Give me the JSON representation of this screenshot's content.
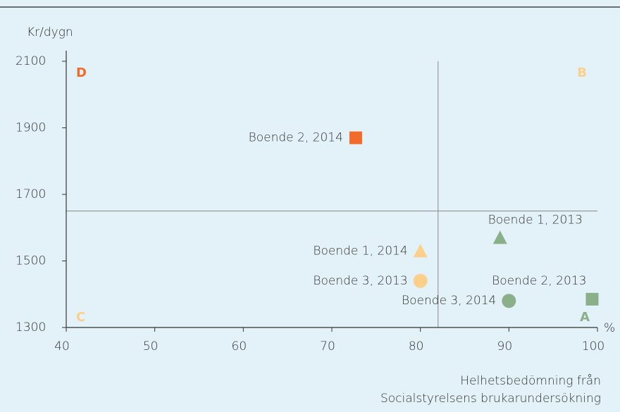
{
  "chart_data": {
    "type": "scatter",
    "ylabel": "Kr/dygn",
    "xunit": "%",
    "xlabel": [
      "Helhetsbedömning från",
      "Socialstyrelsens brukarundersökning"
    ],
    "xlim": [
      40,
      100
    ],
    "xticks": [
      40,
      50,
      60,
      70,
      80,
      90,
      100
    ],
    "ylim": [
      1300,
      2100
    ],
    "yticks": [
      1300,
      1500,
      1700,
      1900,
      2100
    ],
    "vline": 82,
    "hline": 1650,
    "quadrants": [
      {
        "text": "D",
        "color": "#f26b2a",
        "corner": "top-left"
      },
      {
        "text": "B",
        "color": "#fcd08a",
        "corner": "top-right"
      },
      {
        "text": "C",
        "color": "#fcd08a",
        "corner": "bottom-left"
      },
      {
        "text": "A",
        "color": "#8ab089",
        "corner": "bottom-right"
      }
    ],
    "points": [
      {
        "label": "Boende 2, 2014",
        "x": 72.7,
        "y": 1870,
        "marker": "square",
        "color": "#f26b2a"
      },
      {
        "label": "Boende 1, 2014",
        "x": 80,
        "y": 1530,
        "marker": "triangle",
        "color": "#fcd08a"
      },
      {
        "label": "Boende 3, 2013",
        "x": 80,
        "y": 1440,
        "marker": "circle",
        "color": "#fcd08a"
      },
      {
        "label": "Boende 1, 2013",
        "x": 89,
        "y": 1570,
        "marker": "triangle",
        "color": "#8ab089"
      },
      {
        "label": "Boende 3, 2014",
        "x": 90,
        "y": 1380,
        "marker": "circle",
        "color": "#8ab089"
      },
      {
        "label": "Boende 2, 2013",
        "x": 99.4,
        "y": 1385,
        "marker": "square",
        "color": "#8ab089"
      }
    ]
  }
}
